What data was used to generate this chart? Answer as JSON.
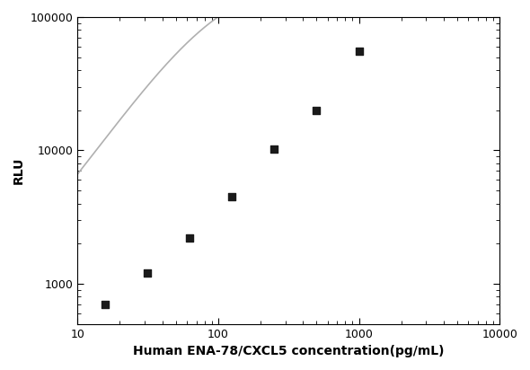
{
  "x_data": [
    15.625,
    31.25,
    62.5,
    125,
    250,
    500,
    1000
  ],
  "y_data": [
    700,
    1200,
    2200,
    4500,
    10300,
    20000,
    55000
  ],
  "xlabel": "Human ENA-78/CXCL5 concentration(pg/mL)",
  "ylabel": "RLU",
  "xlim": [
    10,
    10000
  ],
  "ylim": [
    500,
    100000
  ],
  "x_ticks": [
    10,
    100,
    1000,
    10000
  ],
  "y_ticks": [
    1000,
    10000,
    100000
  ],
  "line_color": "#b0b0b0",
  "marker_color": "#1a1a1a",
  "background_color": "#ffffff",
  "figsize": [
    5.9,
    4.12
  ],
  "dpi": 100,
  "xlabel_fontsize": 10,
  "ylabel_fontsize": 10,
  "tick_fontsize": 9,
  "marker_size": 35,
  "line_width": 1.2
}
